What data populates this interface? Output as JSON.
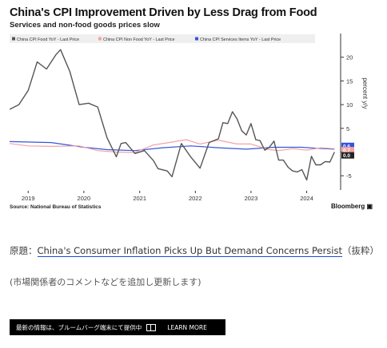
{
  "chart_data": {
    "type": "line",
    "title": "China's CPI Improvement Driven by Less Drag from Food",
    "subtitle": "Services and non-food goods prices slow",
    "ylabel": "percent y/y",
    "ylim": [
      -8,
      25
    ],
    "yticks": [
      -5,
      0,
      5,
      10,
      15,
      20
    ],
    "xticks": [
      "2019",
      "2020",
      "2021",
      "2022",
      "2023",
      "2024"
    ],
    "grid": false,
    "legend_position": "top",
    "series": [
      {
        "name": "China CPI Food YoY - Last Price",
        "color": "#555555",
        "values": [
          {
            "x": "2018-09",
            "y": 9.0
          },
          {
            "x": "2018-11",
            "y": 10.0
          },
          {
            "x": "2019-01",
            "y": 13.0
          },
          {
            "x": "2019-03",
            "y": 19.0
          },
          {
            "x": "2019-05",
            "y": 17.5
          },
          {
            "x": "2019-07",
            "y": 20.5
          },
          {
            "x": "2019-08",
            "y": 21.6
          },
          {
            "x": "2019-10",
            "y": 17.0
          },
          {
            "x": "2019-12",
            "y": 10.0
          },
          {
            "x": "2020-02",
            "y": 10.3
          },
          {
            "x": "2020-04",
            "y": 9.5
          },
          {
            "x": "2020-06",
            "y": 3.0
          },
          {
            "x": "2020-08",
            "y": -1.0
          },
          {
            "x": "2020-09",
            "y": 1.8
          },
          {
            "x": "2020-10",
            "y": 2.0
          },
          {
            "x": "2020-12",
            "y": -0.3
          },
          {
            "x": "2021-02",
            "y": 0.3
          },
          {
            "x": "2021-04",
            "y": -1.8
          },
          {
            "x": "2021-05",
            "y": -3.5
          },
          {
            "x": "2021-07",
            "y": -4.0
          },
          {
            "x": "2021-08",
            "y": -5.2
          },
          {
            "x": "2021-10",
            "y": 1.8
          },
          {
            "x": "2021-12",
            "y": -1.0
          },
          {
            "x": "2022-02",
            "y": -3.4
          },
          {
            "x": "2022-04",
            "y": 2.0
          },
          {
            "x": "2022-06",
            "y": 2.8
          },
          {
            "x": "2022-07",
            "y": 6.2
          },
          {
            "x": "2022-08",
            "y": 6.0
          },
          {
            "x": "2022-09",
            "y": 8.5
          },
          {
            "x": "2022-10",
            "y": 7.0
          },
          {
            "x": "2022-11",
            "y": 4.5
          },
          {
            "x": "2022-12",
            "y": 3.6
          },
          {
            "x": "2023-01",
            "y": 6.0
          },
          {
            "x": "2023-02",
            "y": 2.6
          },
          {
            "x": "2023-03",
            "y": 2.4
          },
          {
            "x": "2023-04",
            "y": 0.4
          },
          {
            "x": "2023-05",
            "y": 1.0
          },
          {
            "x": "2023-06",
            "y": 2.3
          },
          {
            "x": "2023-07",
            "y": -1.7
          },
          {
            "x": "2023-08",
            "y": -1.7
          },
          {
            "x": "2023-09",
            "y": -3.2
          },
          {
            "x": "2023-10",
            "y": -4.0
          },
          {
            "x": "2023-11",
            "y": -4.2
          },
          {
            "x": "2023-12",
            "y": -3.7
          },
          {
            "x": "2024-01",
            "y": -5.9
          },
          {
            "x": "2024-02",
            "y": -0.9
          },
          {
            "x": "2024-03",
            "y": -2.7
          },
          {
            "x": "2024-04",
            "y": -2.7
          },
          {
            "x": "2024-05",
            "y": -2.0
          },
          {
            "x": "2024-06",
            "y": -2.1
          },
          {
            "x": "2024-07",
            "y": 0.0
          }
        ]
      },
      {
        "name": "China CPI Non Food YoY - Last Price",
        "color": "#f2a3a3",
        "values": [
          {
            "x": "2018-09",
            "y": 1.8
          },
          {
            "x": "2019-01",
            "y": 1.3
          },
          {
            "x": "2019-06",
            "y": 1.2
          },
          {
            "x": "2019-12",
            "y": 1.3
          },
          {
            "x": "2020-04",
            "y": 0.3
          },
          {
            "x": "2020-08",
            "y": 0.0
          },
          {
            "x": "2020-12",
            "y": -0.1
          },
          {
            "x": "2021-04",
            "y": 1.5
          },
          {
            "x": "2021-08",
            "y": 2.1
          },
          {
            "x": "2021-11",
            "y": 2.6
          },
          {
            "x": "2022-02",
            "y": 1.7
          },
          {
            "x": "2022-06",
            "y": 2.5
          },
          {
            "x": "2022-10",
            "y": 1.7
          },
          {
            "x": "2023-01",
            "y": 1.7
          },
          {
            "x": "2023-05",
            "y": 0.5
          },
          {
            "x": "2023-07",
            "y": 0.3
          },
          {
            "x": "2023-10",
            "y": 0.7
          },
          {
            "x": "2024-01",
            "y": 0.4
          },
          {
            "x": "2024-04",
            "y": 0.9
          },
          {
            "x": "2024-07",
            "y": 0.7
          }
        ]
      },
      {
        "name": "China CPI Services Items YoY - Last Price",
        "color": "#3355dd",
        "values": [
          {
            "x": "2018-09",
            "y": 2.2
          },
          {
            "x": "2019-06",
            "y": 2.0
          },
          {
            "x": "2020-01",
            "y": 1.0
          },
          {
            "x": "2020-06",
            "y": 0.5
          },
          {
            "x": "2020-12",
            "y": 0.3
          },
          {
            "x": "2021-06",
            "y": 0.9
          },
          {
            "x": "2021-12",
            "y": 1.3
          },
          {
            "x": "2022-06",
            "y": 0.9
          },
          {
            "x": "2022-12",
            "y": 0.6
          },
          {
            "x": "2023-06",
            "y": 1.0
          },
          {
            "x": "2023-12",
            "y": 1.0
          },
          {
            "x": "2024-03",
            "y": 0.8
          },
          {
            "x": "2024-07",
            "y": 0.6
          }
        ]
      }
    ],
    "last_value_labels": [
      {
        "text": "0.6",
        "color": "#3355dd"
      },
      {
        "text": "0.7",
        "color": "#f2a3a3"
      },
      {
        "text": "0.0",
        "color": "#222222"
      }
    ],
    "source": "Source: National Bureau of Statistics",
    "brand": "Bloomberg"
  },
  "caption": {
    "prefix": "原題：",
    "link_text": "China's Consumer Inflation Picks Up But Demand Concerns Persist",
    "suffix": "（抜粋）",
    "note": "(市場関係者のコメントなどを追加し更新します)"
  },
  "promo": {
    "text": "最新の情報は、ブルームバーグ端末にて提供中",
    "cta": "LEARN MORE"
  }
}
